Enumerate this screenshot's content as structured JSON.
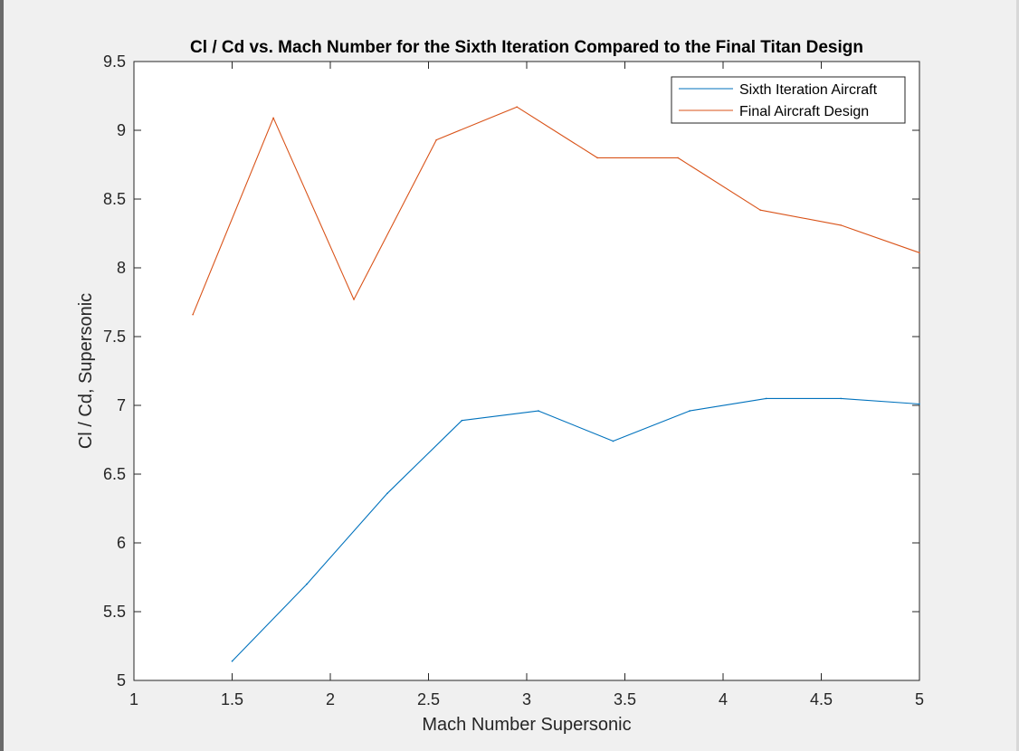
{
  "chart_data": {
    "type": "line",
    "title": "Cl / Cd vs. Mach Number for the Sixth Iteration Compared to the Final Titan Design",
    "xlabel": "Mach Number Supersonic",
    "ylabel": "Cl / Cd, Supersonic",
    "xlim": [
      1,
      5
    ],
    "ylim": [
      5,
      9.5
    ],
    "xticks": [
      1,
      1.5,
      2,
      2.5,
      3,
      3.5,
      4,
      4.5,
      5
    ],
    "xtick_labels": [
      "1",
      "1.5",
      "2",
      "2.5",
      "3",
      "3.5",
      "4",
      "4.5",
      "5"
    ],
    "yticks": [
      5,
      5.5,
      6,
      6.5,
      7,
      7.5,
      8,
      8.5,
      9,
      9.5
    ],
    "ytick_labels": [
      "5",
      "5.5",
      "6",
      "6.5",
      "7",
      "7.5",
      "8",
      "8.5",
      "9",
      "9.5"
    ],
    "grid": false,
    "legend_position": "top-right",
    "series": [
      {
        "name": "Sixth Iteration Aircraft",
        "color": "#0072bd",
        "x": [
          1.5,
          1.88,
          2.29,
          2.67,
          3.06,
          3.44,
          3.83,
          4.22,
          4.6,
          5.0
        ],
        "y": [
          5.14,
          5.7,
          6.36,
          6.89,
          6.96,
          6.74,
          6.96,
          7.05,
          7.05,
          7.01
        ]
      },
      {
        "name": "Final Aircraft Design",
        "color": "#d95319",
        "x": [
          1.3,
          1.71,
          2.12,
          2.54,
          2.95,
          3.36,
          3.77,
          4.19,
          4.6,
          5.0
        ],
        "y": [
          7.66,
          9.09,
          7.77,
          8.93,
          9.17,
          8.8,
          8.8,
          8.42,
          8.31,
          8.11
        ]
      }
    ]
  }
}
